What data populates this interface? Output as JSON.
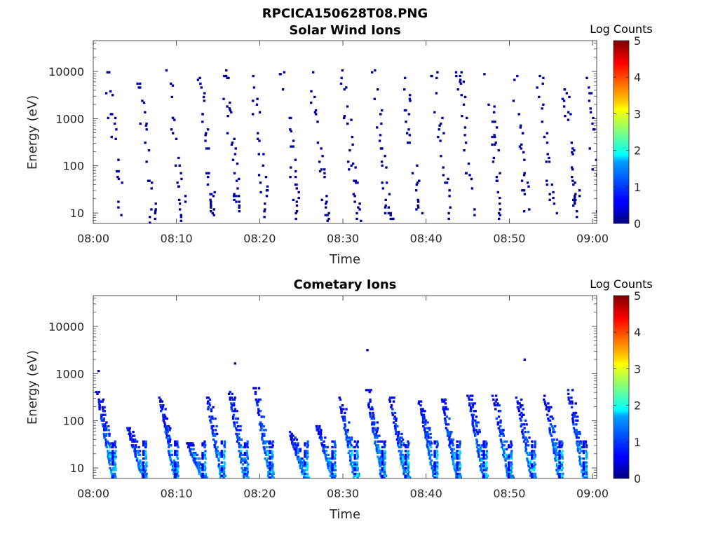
{
  "figure": {
    "title": "RPCICA150628T08.PNG"
  },
  "chart_data": [
    {
      "type": "heatmap",
      "title": "Solar Wind Ions",
      "xlabel": "Time",
      "ylabel": "Energy (eV)",
      "x_ticks": [
        "08:00",
        "08:10",
        "08:20",
        "08:30",
        "08:40",
        "08:50",
        "09:00"
      ],
      "xlim_minutes": [
        0,
        60.5
      ],
      "y_scale": "log",
      "y_ticks": [
        10,
        100,
        1000,
        10000
      ],
      "y_tick_labels": [
        "10",
        "100",
        "1000",
        "10000"
      ],
      "ylim": [
        6,
        45000
      ],
      "colorbar": {
        "label": "Log Counts",
        "ticks": [
          0,
          1,
          2,
          3,
          4,
          5
        ],
        "range": [
          0,
          5
        ],
        "colormap": "jet"
      },
      "sweep_period_minutes": 4,
      "sweep_starts_minutes": [
        1.5,
        5.2,
        8.9,
        12.6,
        15.6,
        18.9,
        22.6,
        26.0,
        29.8,
        33.6,
        37.2,
        40.8,
        43.8,
        47.2,
        50.3,
        53.4,
        56.3,
        59.0
      ],
      "signal_level_log_counts": [
        0.05,
        0.3
      ],
      "notes": "Sparse low-count (dark blue) pixels scattered along each energy sweep from ~10 eV up to ~10000 eV"
    },
    {
      "type": "heatmap",
      "title": "Cometary Ions",
      "xlabel": "Time",
      "ylabel": "Energy (eV)",
      "x_ticks": [
        "08:00",
        "08:10",
        "08:20",
        "08:30",
        "08:40",
        "08:50",
        "09:00"
      ],
      "xlim_minutes": [
        0,
        60.5
      ],
      "y_scale": "log",
      "y_ticks": [
        10,
        100,
        1000,
        10000
      ],
      "y_tick_labels": [
        "10",
        "100",
        "1000",
        "10000"
      ],
      "ylim": [
        6,
        45000
      ],
      "colorbar": {
        "label": "Log Counts",
        "ticks": [
          0,
          1,
          2,
          3,
          4,
          5
        ],
        "range": [
          0,
          5
        ],
        "colormap": "jet"
      },
      "sweep_starts_minutes": [
        0.6,
        4.3,
        8.1,
        11.4,
        13.7,
        16.5,
        19.5,
        23.7,
        27.0,
        29.7,
        33.0,
        35.8,
        39.3,
        42.0,
        45.2,
        48.2,
        51.0,
        54.3,
        57.2
      ],
      "peak_energy_eV": [
        400,
        70,
        300,
        35,
        350,
        400,
        500,
        60,
        80,
        300,
        450,
        300,
        250,
        280,
        350,
        350,
        320,
        350,
        450
      ],
      "core_level_log_counts": [
        1,
        2
      ],
      "isolated_points": [
        {
          "t_minutes": 0.5,
          "energy_eV": 1150
        },
        {
          "t_minutes": 16.9,
          "energy_eV": 1600
        },
        {
          "t_minutes": 32.8,
          "energy_eV": 3300
        },
        {
          "t_minutes": 51.7,
          "energy_eV": 2000
        }
      ]
    }
  ]
}
